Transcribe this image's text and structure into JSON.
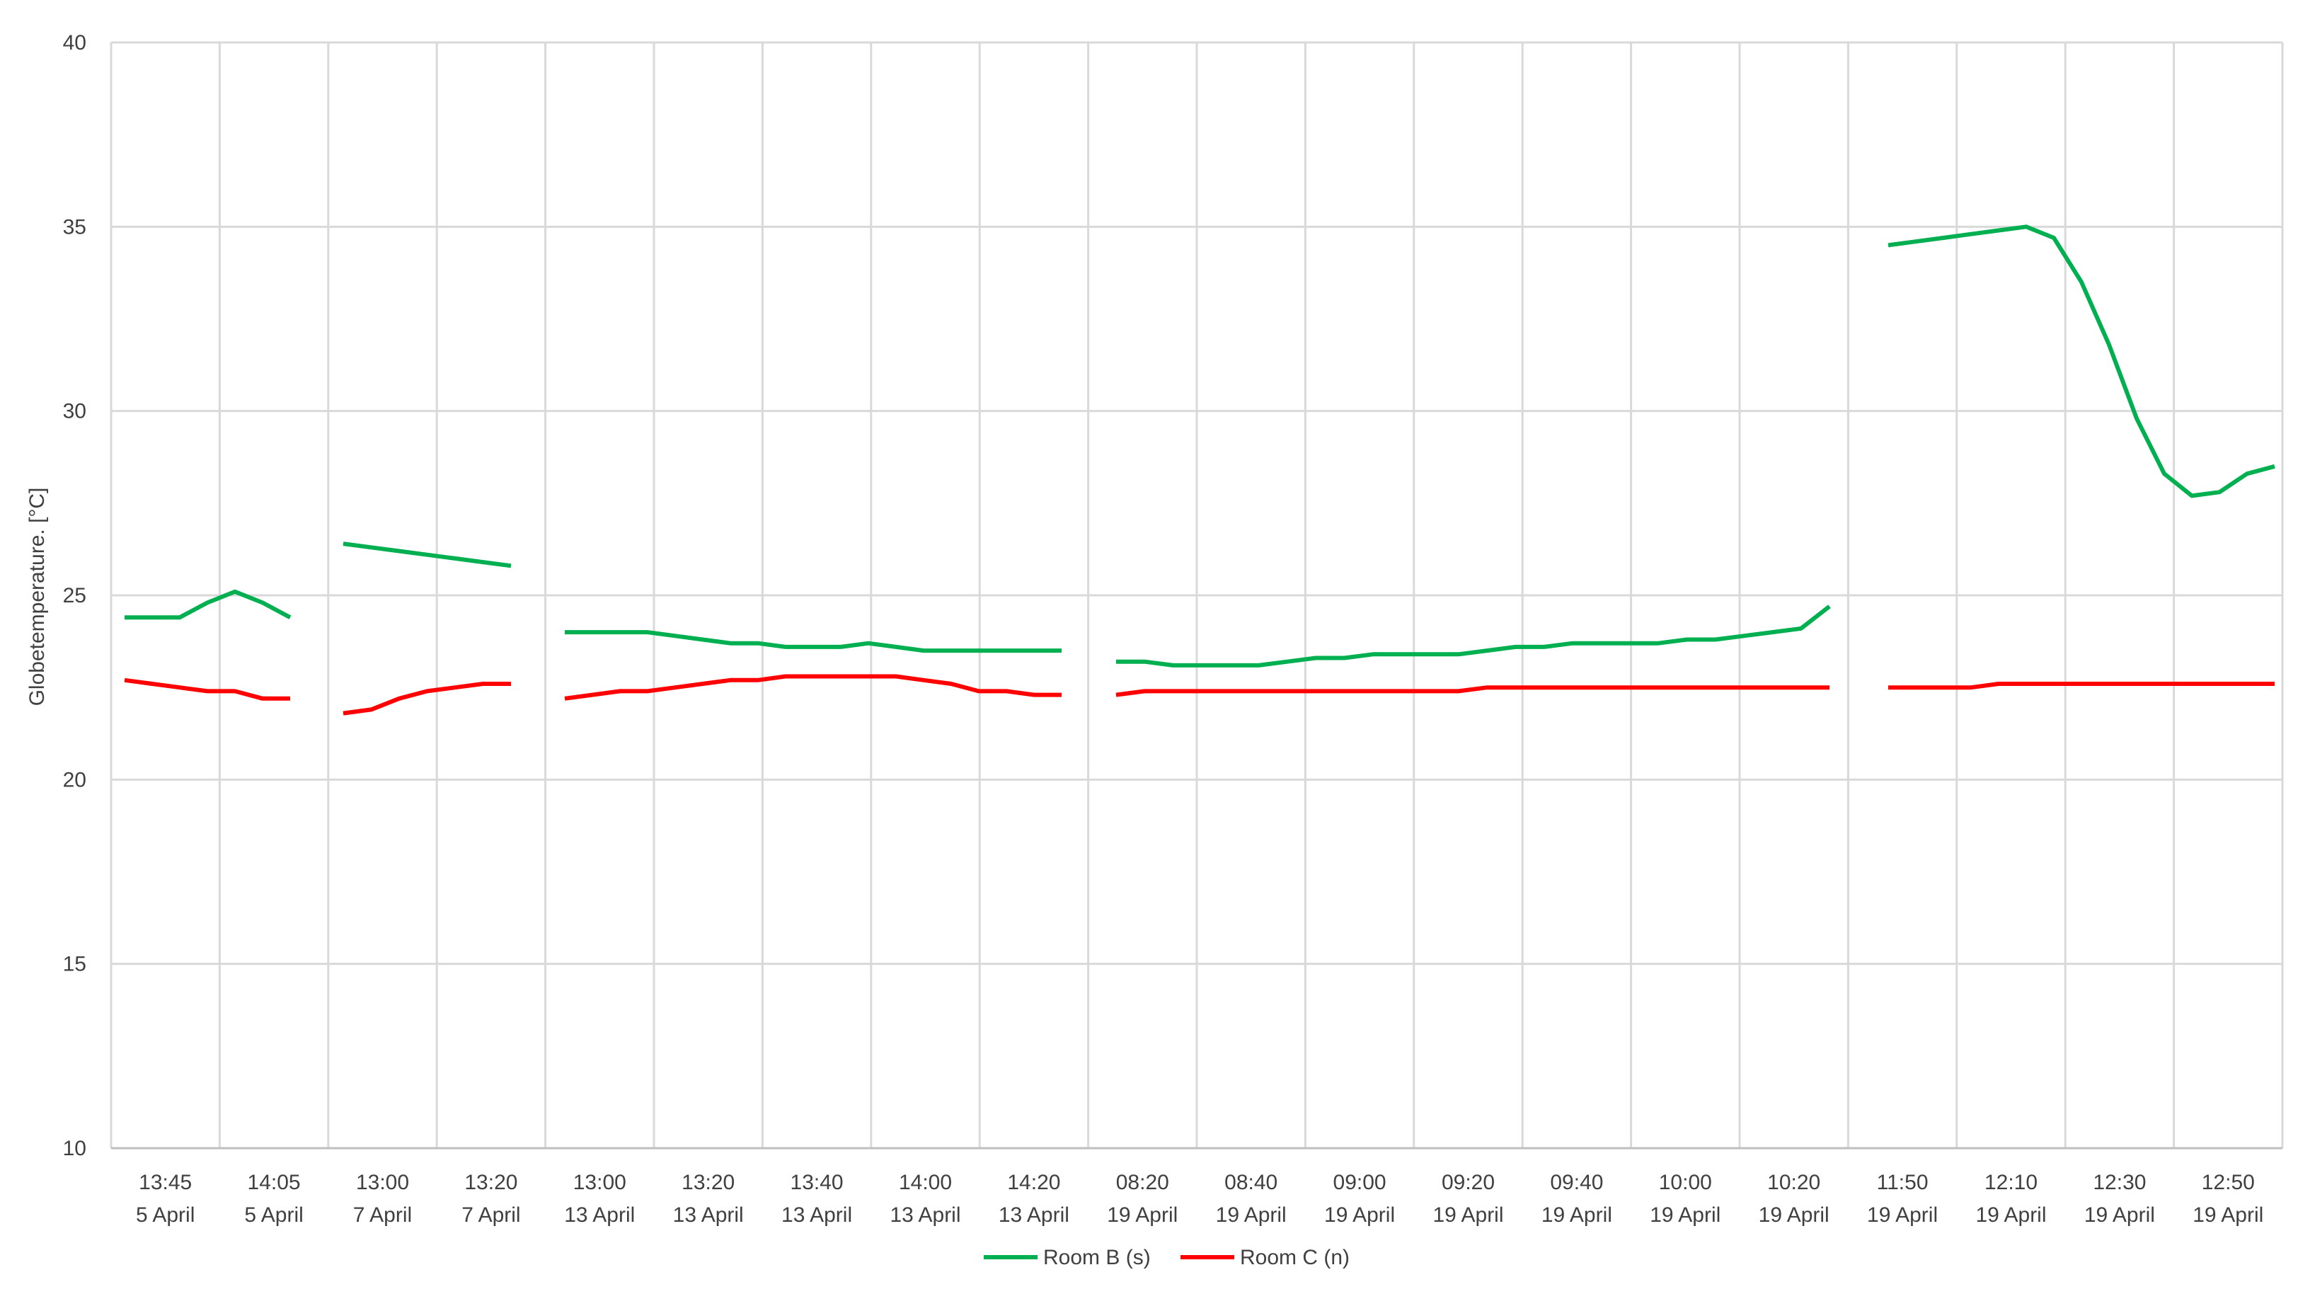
{
  "chart_data": {
    "type": "line",
    "title": "",
    "xlabel": "",
    "ylabel": "Globetemperature. [°C]",
    "ylim": [
      10,
      40
    ],
    "yticks": [
      10,
      15,
      20,
      25,
      30,
      35,
      40
    ],
    "grid": "on",
    "legend_placement": "bottom-center",
    "x_labels": [
      [
        "13:45",
        "5 April"
      ],
      [
        "14:05",
        "5 April"
      ],
      [
        "13:00",
        "7 April"
      ],
      [
        "13:20",
        "7 April"
      ],
      [
        "13:00",
        "13 April"
      ],
      [
        "13:20",
        "13 April"
      ],
      [
        "13:40",
        "13 April"
      ],
      [
        "14:00",
        "13 April"
      ],
      [
        "14:20",
        "13 April"
      ],
      [
        "08:20",
        "19 April"
      ],
      [
        "08:40",
        "19 April"
      ],
      [
        "09:00",
        "19 April"
      ],
      [
        "09:20",
        "19 April"
      ],
      [
        "09:40",
        "19 April"
      ],
      [
        "10:00",
        "19 April"
      ],
      [
        "10:20",
        "19 April"
      ],
      [
        "11:50",
        "19 April"
      ],
      [
        "12:10",
        "19 April"
      ],
      [
        "12:30",
        "19 April"
      ],
      [
        "12:50",
        "19 April"
      ]
    ],
    "series": [
      {
        "name": "Room B (s)",
        "color": "#00b050",
        "segments": [
          [
            24.4,
            24.4,
            24.4,
            24.8,
            25.1,
            24.8,
            24.4
          ],
          [
            26.4,
            26.3,
            26.2,
            26.1,
            26.0,
            25.9,
            25.8
          ],
          [
            24.0,
            24.0,
            24.0,
            24.0,
            23.9,
            23.8,
            23.7,
            23.7,
            23.6,
            23.6,
            23.6,
            23.7,
            23.6,
            23.5,
            23.5,
            23.5,
            23.5,
            23.5,
            23.5
          ],
          [
            23.2,
            23.2,
            23.1,
            23.1,
            23.1,
            23.1,
            23.2,
            23.3,
            23.3,
            23.4,
            23.4,
            23.4,
            23.4,
            23.5,
            23.6,
            23.6,
            23.7,
            23.7,
            23.7,
            23.7,
            23.8,
            23.8,
            23.9,
            24.0,
            24.1,
            24.7
          ],
          [
            34.5,
            34.6,
            34.7,
            34.8,
            34.9,
            35.0,
            34.7,
            33.5,
            31.8,
            29.8,
            28.3,
            27.7,
            27.8,
            28.3,
            28.5
          ]
        ]
      },
      {
        "name": "Room C (n)",
        "color": "#ff0000",
        "segments": [
          [
            22.7,
            22.6,
            22.5,
            22.4,
            22.4,
            22.2,
            22.2
          ],
          [
            21.8,
            21.9,
            22.2,
            22.4,
            22.5,
            22.6,
            22.6
          ],
          [
            22.2,
            22.3,
            22.4,
            22.4,
            22.5,
            22.6,
            22.7,
            22.7,
            22.8,
            22.8,
            22.8,
            22.8,
            22.8,
            22.7,
            22.6,
            22.4,
            22.4,
            22.3,
            22.3
          ],
          [
            22.3,
            22.4,
            22.4,
            22.4,
            22.4,
            22.4,
            22.4,
            22.4,
            22.4,
            22.4,
            22.4,
            22.4,
            22.4,
            22.5,
            22.5,
            22.5,
            22.5,
            22.5,
            22.5,
            22.5,
            22.5,
            22.5,
            22.5,
            22.5,
            22.5,
            22.5
          ],
          [
            22.5,
            22.5,
            22.5,
            22.5,
            22.6,
            22.6,
            22.6,
            22.6,
            22.6,
            22.6,
            22.6,
            22.6,
            22.6,
            22.6,
            22.6
          ]
        ]
      }
    ]
  }
}
